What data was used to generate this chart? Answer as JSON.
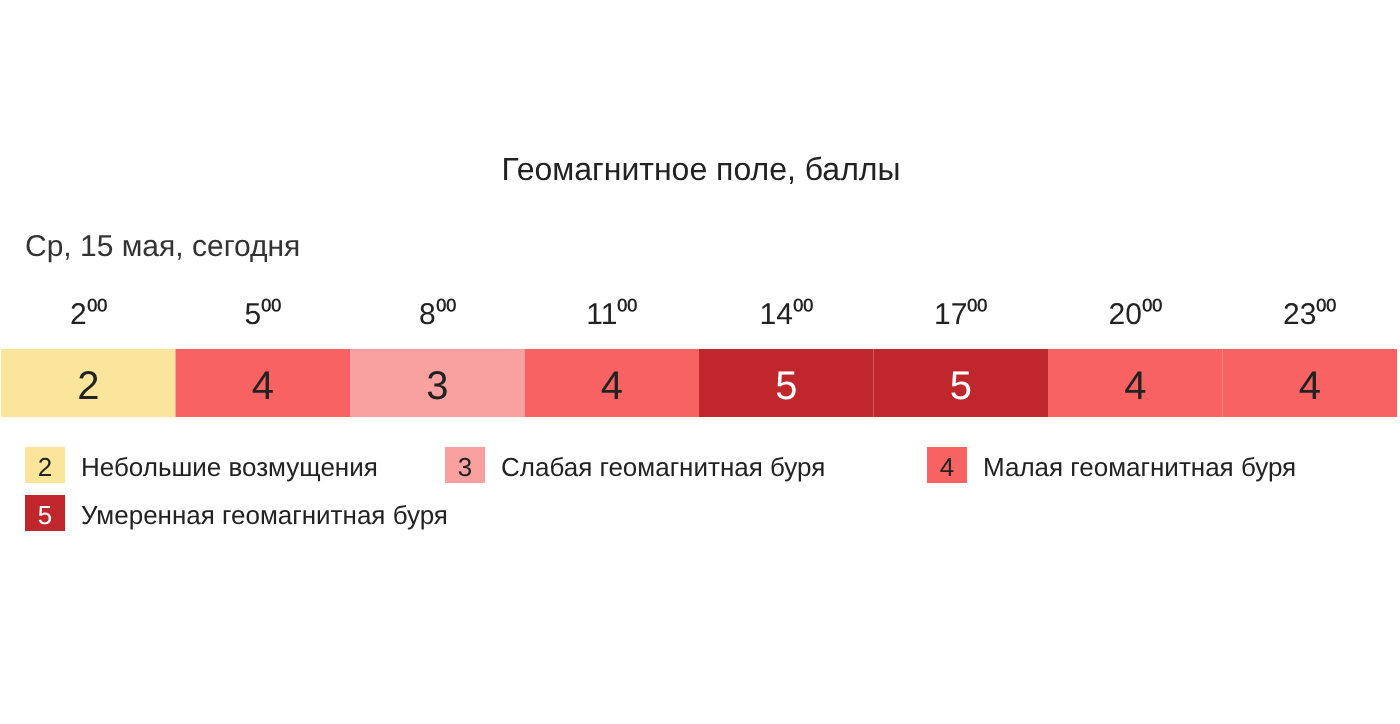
{
  "chart_data": {
    "type": "heatmap",
    "title": "Геомагнитное поле, баллы",
    "subtitle": "Ср, 15 мая, сегодня",
    "categories": [
      "2⁰⁰",
      "5⁰⁰",
      "8⁰⁰",
      "11⁰⁰",
      "14⁰⁰",
      "17⁰⁰",
      "20⁰⁰",
      "23⁰⁰"
    ],
    "y_categories": [
      null
    ],
    "cells": [
      [
        2,
        4,
        3,
        4,
        5,
        5,
        4,
        4
      ]
    ],
    "colors": [
      "#fbe59a",
      "#f86262",
      "#f9a0a0",
      "#f86262",
      "#c0272d",
      "#c0272d",
      "#f86262",
      "#f86262"
    ],
    "data_labels": true,
    "annotations": [
      "2",
      "Небольшие возмущения",
      "3",
      "Слабая геомагнитная буря",
      "4",
      "Малая геомагнитная буря",
      "5",
      "Умеренная геомагнитная буря"
    ]
  }
}
